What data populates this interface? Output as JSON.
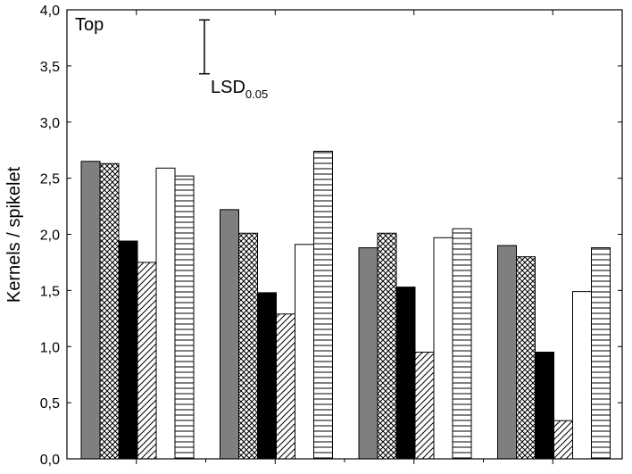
{
  "chart_data": {
    "type": "bar",
    "title": "",
    "panel_label": "Top",
    "xlabel": "",
    "ylabel": "Kernels / spikelet",
    "ylim": [
      0,
      4
    ],
    "ytick_step": 0.5,
    "ytick_labels": [
      "0,0",
      "0,5",
      "1,0",
      "1,5",
      "2,0",
      "2,5",
      "3,0",
      "3,5",
      "4,0"
    ],
    "grid": false,
    "legend": "none",
    "categories": [
      "",
      "",
      "",
      ""
    ],
    "series": [
      {
        "pattern": "solid-gray",
        "color": "#7f7f7f",
        "values": [
          2.65,
          2.22,
          1.88,
          1.9
        ]
      },
      {
        "pattern": "crosshatch",
        "color": "#000000",
        "values": [
          2.63,
          2.01,
          2.01,
          1.8
        ]
      },
      {
        "pattern": "solid-black",
        "color": "#000000",
        "values": [
          1.94,
          1.48,
          1.53,
          0.95
        ]
      },
      {
        "pattern": "diagonal",
        "color": "#000000",
        "values": [
          1.75,
          1.29,
          0.95,
          0.34
        ]
      },
      {
        "pattern": "white",
        "color": "#ffffff",
        "values": [
          2.59,
          1.91,
          1.97,
          1.49
        ]
      },
      {
        "pattern": "horizontal-lines",
        "color": "#000000",
        "values": [
          2.52,
          2.74,
          2.05,
          1.88
        ]
      }
    ],
    "lsd": {
      "label": "LSD",
      "subscript": "0.05",
      "low": 3.43,
      "high": 3.91
    }
  }
}
